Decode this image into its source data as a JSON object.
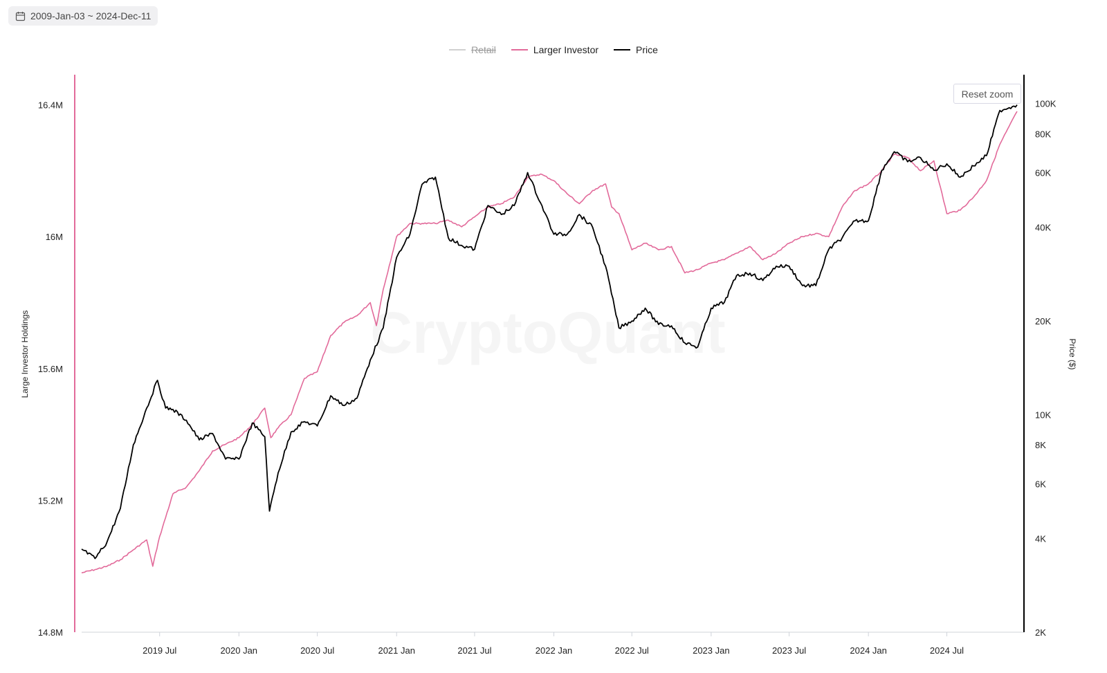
{
  "date_range": {
    "label": "2009-Jan-03 ~ 2024-Dec-11",
    "icon": "calendar-icon"
  },
  "legend": [
    {
      "label": "Retail",
      "color": "#d0d0d0",
      "hidden": true
    },
    {
      "label": "Larger Investor",
      "color": "#e26a9a",
      "hidden": false
    },
    {
      "label": "Price",
      "color": "#000000",
      "hidden": false
    }
  ],
  "reset_zoom_label": "Reset zoom",
  "watermark": "CryptoQuant",
  "chart_data": {
    "type": "line",
    "x_tick_labels": [
      "2019 Jul",
      "2020 Jan",
      "2020 Jul",
      "2021 Jan",
      "2021 Jul",
      "2022 Jan",
      "2022 Jul",
      "2023 Jan",
      "2023 Jul",
      "2024 Jan",
      "2024 Jul"
    ],
    "x_ticks": [
      "2019-07-01",
      "2020-01-01",
      "2020-07-01",
      "2021-01-01",
      "2021-07-01",
      "2022-01-01",
      "2022-07-01",
      "2023-01-01",
      "2023-07-01",
      "2024-01-01",
      "2024-07-01"
    ],
    "xlim": [
      "2019-01-01",
      "2024-12-11"
    ],
    "y_left": {
      "label": "Large Investor Holdings",
      "ticks": [
        14800000,
        15200000,
        15600000,
        16000000,
        16400000
      ],
      "tick_labels": [
        "14.8M",
        "15.2M",
        "15.6M",
        "16M",
        "16.4M"
      ],
      "ylim": [
        14800000,
        16420000
      ]
    },
    "y_right": {
      "label": "Price ($)",
      "scale": "log",
      "ticks": [
        2000,
        4000,
        6000,
        8000,
        10000,
        20000,
        40000,
        60000,
        80000,
        100000
      ],
      "tick_labels": [
        "2K",
        "4K",
        "6K",
        "8K",
        "10K",
        "20K",
        "40K",
        "60K",
        "80K",
        "100K"
      ],
      "ylim": [
        2000,
        104000
      ]
    },
    "series": [
      {
        "name": "Larger Investor",
        "axis": "left",
        "color": "#e26a9a",
        "x": [
          "2019-01-01",
          "2019-02-01",
          "2019-03-01",
          "2019-04-01",
          "2019-05-01",
          "2019-06-01",
          "2019-06-15",
          "2019-07-01",
          "2019-08-01",
          "2019-09-01",
          "2019-10-01",
          "2019-11-01",
          "2019-12-01",
          "2020-01-01",
          "2020-02-01",
          "2020-03-01",
          "2020-03-15",
          "2020-04-01",
          "2020-05-01",
          "2020-06-01",
          "2020-07-01",
          "2020-08-01",
          "2020-09-01",
          "2020-10-01",
          "2020-11-01",
          "2020-11-15",
          "2020-12-01",
          "2021-01-01",
          "2021-02-01",
          "2021-03-01",
          "2021-04-01",
          "2021-05-01",
          "2021-06-01",
          "2021-07-01",
          "2021-08-01",
          "2021-09-01",
          "2021-10-01",
          "2021-11-01",
          "2021-12-01",
          "2022-01-01",
          "2022-02-01",
          "2022-03-01",
          "2022-04-01",
          "2022-05-01",
          "2022-05-15",
          "2022-06-01",
          "2022-07-01",
          "2022-08-01",
          "2022-09-01",
          "2022-10-01",
          "2022-11-01",
          "2022-12-01",
          "2023-01-01",
          "2023-02-01",
          "2023-03-01",
          "2023-04-01",
          "2023-05-01",
          "2023-06-01",
          "2023-07-01",
          "2023-08-01",
          "2023-09-01",
          "2023-10-01",
          "2023-11-01",
          "2023-12-01",
          "2024-01-01",
          "2024-02-01",
          "2024-03-01",
          "2024-04-01",
          "2024-05-01",
          "2024-06-01",
          "2024-07-01",
          "2024-08-01",
          "2024-09-01",
          "2024-10-01",
          "2024-11-01",
          "2024-12-11"
        ],
        "y": [
          14980000,
          14990000,
          15000000,
          15020000,
          15050000,
          15080000,
          15000000,
          15090000,
          15220000,
          15240000,
          15290000,
          15350000,
          15370000,
          15390000,
          15430000,
          15480000,
          15390000,
          15420000,
          15460000,
          15570000,
          15590000,
          15700000,
          15740000,
          15760000,
          15800000,
          15730000,
          15840000,
          16000000,
          16040000,
          16040000,
          16040000,
          16050000,
          16030000,
          16060000,
          16090000,
          16100000,
          16120000,
          16180000,
          16190000,
          16170000,
          16130000,
          16100000,
          16140000,
          16160000,
          16090000,
          16070000,
          15960000,
          15980000,
          15960000,
          15970000,
          15890000,
          15900000,
          15920000,
          15930000,
          15950000,
          15970000,
          15930000,
          15950000,
          15980000,
          16000000,
          16010000,
          16000000,
          16090000,
          16140000,
          16160000,
          16200000,
          16250000,
          16240000,
          16200000,
          16230000,
          16070000,
          16080000,
          16120000,
          16170000,
          16280000,
          16380000
        ]
      },
      {
        "name": "Price",
        "axis": "right",
        "color": "#000000",
        "x": [
          "2019-01-01",
          "2019-02-01",
          "2019-03-01",
          "2019-04-01",
          "2019-05-01",
          "2019-06-01",
          "2019-06-26",
          "2019-07-15",
          "2019-08-01",
          "2019-09-01",
          "2019-10-01",
          "2019-11-01",
          "2019-12-01",
          "2020-01-01",
          "2020-02-01",
          "2020-03-01",
          "2020-03-12",
          "2020-04-01",
          "2020-05-01",
          "2020-06-01",
          "2020-07-01",
          "2020-08-01",
          "2020-09-01",
          "2020-10-01",
          "2020-11-01",
          "2020-12-01",
          "2021-01-01",
          "2021-02-01",
          "2021-03-01",
          "2021-04-01",
          "2021-05-01",
          "2021-06-01",
          "2021-07-01",
          "2021-08-01",
          "2021-09-01",
          "2021-10-01",
          "2021-11-01",
          "2021-12-01",
          "2022-01-01",
          "2022-02-01",
          "2022-03-01",
          "2022-04-01",
          "2022-05-01",
          "2022-06-01",
          "2022-07-01",
          "2022-08-01",
          "2022-09-01",
          "2022-10-01",
          "2022-11-01",
          "2022-12-01",
          "2023-01-01",
          "2023-02-01",
          "2023-03-01",
          "2023-04-01",
          "2023-05-01",
          "2023-06-01",
          "2023-07-01",
          "2023-08-01",
          "2023-09-01",
          "2023-10-01",
          "2023-11-01",
          "2023-12-01",
          "2024-01-01",
          "2024-02-01",
          "2024-03-01",
          "2024-04-01",
          "2024-05-01",
          "2024-06-01",
          "2024-07-01",
          "2024-08-01",
          "2024-09-01",
          "2024-10-01",
          "2024-11-01",
          "2024-12-11"
        ],
        "y": [
          3700,
          3450,
          3900,
          5000,
          8000,
          10500,
          12900,
          10500,
          10400,
          9600,
          8300,
          8700,
          7200,
          7200,
          9400,
          8500,
          4900,
          6500,
          8800,
          9500,
          9200,
          11500,
          10700,
          11300,
          15000,
          19000,
          32000,
          38000,
          55000,
          58000,
          37000,
          35000,
          34000,
          47000,
          44000,
          47000,
          60000,
          48000,
          38000,
          38000,
          44000,
          40000,
          30000,
          19000,
          20000,
          22000,
          19500,
          19300,
          17000,
          16500,
          22000,
          23000,
          28000,
          28500,
          27000,
          30000,
          30000,
          26000,
          26000,
          34000,
          37000,
          42000,
          42000,
          61000,
          70000,
          65000,
          67000,
          61000,
          64000,
          58000,
          63000,
          68000,
          95000,
          99000
        ]
      }
    ]
  }
}
